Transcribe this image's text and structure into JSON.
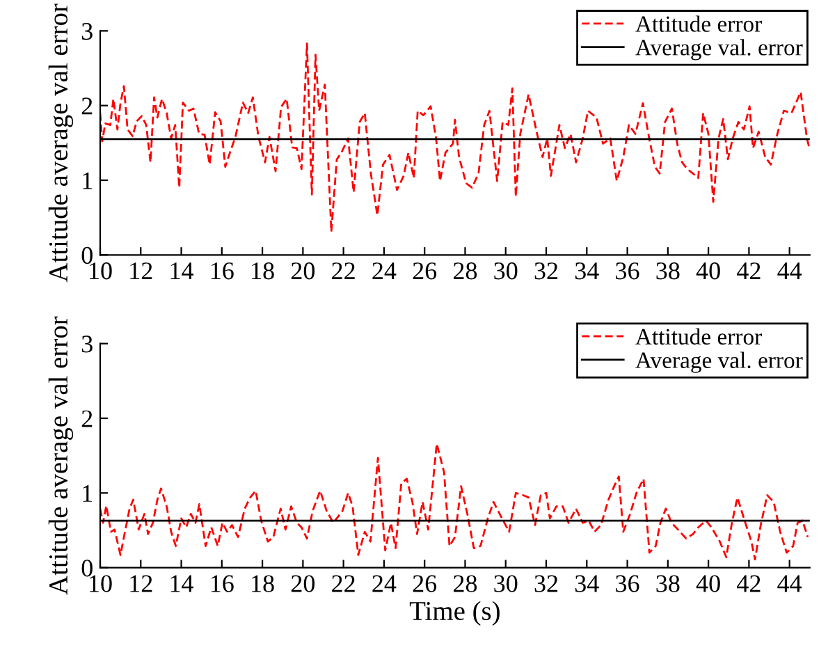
{
  "chart_data": [
    {
      "type": "line",
      "ylabel": "Attitude average val error",
      "xlim": [
        10,
        45
      ],
      "ylim": [
        0,
        3
      ],
      "xticks": [
        10,
        12,
        14,
        16,
        18,
        20,
        22,
        24,
        26,
        28,
        30,
        32,
        34,
        36,
        38,
        40,
        42,
        44
      ],
      "yticks": [
        0,
        1,
        2,
        3
      ],
      "legend": "top right",
      "grid": false,
      "series": [
        {
          "name": "Attitude error",
          "color": "#ff0000",
          "line_style": "dashed",
          "x": [
            10.0,
            10.1,
            10.25,
            10.5,
            10.65,
            10.85,
            11.0,
            11.17,
            11.35,
            11.6,
            11.8,
            12.05,
            12.27,
            12.48,
            12.66,
            12.82,
            13.05,
            13.28,
            13.5,
            13.7,
            13.9,
            14.08,
            14.38,
            14.6,
            14.88,
            15.15,
            15.4,
            15.67,
            15.94,
            16.17,
            16.4,
            16.67,
            17.04,
            17.3,
            17.53,
            17.8,
            18.13,
            18.35,
            18.65,
            18.92,
            19.2,
            19.47,
            19.7,
            19.93,
            20.2,
            20.44,
            20.62,
            20.8,
            21.08,
            21.4,
            21.67,
            21.9,
            22.23,
            22.5,
            22.8,
            23.05,
            23.35,
            23.67,
            23.95,
            24.27,
            24.64,
            24.97,
            25.2,
            25.47,
            25.66,
            25.94,
            26.3,
            26.57,
            26.76,
            27.03,
            27.4,
            27.5,
            27.7,
            28.05,
            28.34,
            28.66,
            28.94,
            29.2,
            29.58,
            29.85,
            30.13,
            30.33,
            30.5,
            30.72,
            31.13,
            31.55,
            31.82,
            32.05,
            32.23,
            32.65,
            32.92,
            33.2,
            33.47,
            33.8,
            34.06,
            34.48,
            34.8,
            35.16,
            35.48,
            35.8,
            36.08,
            36.4,
            36.77,
            37.08,
            37.36,
            37.6,
            37.86,
            38.2,
            38.46,
            38.7,
            38.96,
            39.24,
            39.5,
            39.74,
            40.0,
            40.24,
            40.5,
            40.73,
            40.96,
            41.2,
            41.48,
            41.75,
            42.03,
            42.2,
            42.48,
            42.8,
            43.08,
            43.4,
            43.72,
            44.1,
            44.55,
            44.86,
            44.98
          ],
          "values": [
            1.9,
            1.52,
            1.76,
            1.74,
            2.09,
            1.68,
            2.03,
            2.26,
            1.68,
            1.59,
            1.79,
            1.86,
            1.74,
            1.24,
            2.11,
            1.84,
            2.09,
            1.9,
            1.56,
            1.74,
            0.9,
            2.04,
            1.93,
            1.96,
            1.62,
            1.61,
            1.21,
            1.91,
            1.79,
            1.18,
            1.37,
            1.58,
            2.04,
            1.9,
            2.11,
            1.59,
            1.24,
            1.58,
            1.12,
            1.98,
            2.09,
            1.44,
            1.43,
            1.15,
            2.83,
            0.81,
            2.68,
            1.93,
            2.28,
            0.31,
            1.28,
            1.37,
            1.56,
            0.84,
            1.78,
            1.9,
            1.09,
            0.53,
            1.21,
            1.34,
            0.87,
            1.06,
            1.37,
            1.03,
            1.93,
            1.87,
            1.99,
            1.56,
            0.99,
            1.37,
            1.49,
            1.81,
            1.31,
            0.96,
            0.9,
            1.09,
            1.74,
            1.93,
            0.99,
            1.78,
            1.74,
            2.23,
            0.78,
            1.62,
            2.15,
            1.62,
            1.31,
            1.56,
            1.06,
            1.74,
            1.43,
            1.62,
            1.24,
            1.56,
            1.93,
            1.84,
            1.49,
            1.56,
            0.99,
            1.31,
            1.74,
            1.62,
            2.03,
            1.56,
            1.18,
            1.09,
            1.78,
            1.96,
            1.49,
            1.24,
            1.15,
            1.09,
            1.03,
            1.9,
            1.62,
            0.71,
            1.56,
            1.82,
            1.28,
            1.56,
            1.78,
            1.68,
            1.99,
            1.43,
            1.65,
            1.31,
            1.21,
            1.62,
            1.93,
            1.9,
            2.18,
            1.56,
            1.43
          ]
        },
        {
          "name": "Average val. error",
          "color": "#000000",
          "line_style": "solid",
          "x": [
            10,
            45
          ],
          "values": [
            1.55,
            1.55
          ]
        }
      ]
    },
    {
      "type": "line",
      "ylabel": "Attitude average val error",
      "xlabel": "Time (s)",
      "xlim": [
        10,
        45
      ],
      "ylim": [
        0,
        3
      ],
      "xticks": [
        10,
        12,
        14,
        16,
        18,
        20,
        22,
        24,
        26,
        28,
        30,
        32,
        34,
        36,
        38,
        40,
        42,
        44
      ],
      "yticks": [
        0,
        1,
        2,
        3
      ],
      "legend": "top right",
      "grid": false,
      "series": [
        {
          "name": "Attitude error",
          "color": "#ff0000",
          "line_style": "dashed",
          "x": [
            10.0,
            10.14,
            10.3,
            10.53,
            10.71,
            11.0,
            11.2,
            11.45,
            11.63,
            11.9,
            12.18,
            12.36,
            12.6,
            12.82,
            13.0,
            13.28,
            13.5,
            13.73,
            14.0,
            14.24,
            14.47,
            14.7,
            14.89,
            15.2,
            15.48,
            15.8,
            16.03,
            16.26,
            16.5,
            16.8,
            17.13,
            17.4,
            17.67,
            17.94,
            18.27,
            18.54,
            18.9,
            19.14,
            19.42,
            19.7,
            19.93,
            20.2,
            20.48,
            20.85,
            21.17,
            21.5,
            21.95,
            22.23,
            22.45,
            22.73,
            23.05,
            23.33,
            23.7,
            24.06,
            24.34,
            24.57,
            24.85,
            25.12,
            25.4,
            25.63,
            25.9,
            26.18,
            26.6,
            26.96,
            27.23,
            27.5,
            27.8,
            28.11,
            28.43,
            28.76,
            29.12,
            29.4,
            29.76,
            30.17,
            30.5,
            30.86,
            31.13,
            31.45,
            31.73,
            32.0,
            32.18,
            32.5,
            32.82,
            33.1,
            33.47,
            33.8,
            34.1,
            34.38,
            34.7,
            35.07,
            35.35,
            35.58,
            35.8,
            36.14,
            36.45,
            36.8,
            37.09,
            37.4,
            37.63,
            37.9,
            38.18,
            38.5,
            38.9,
            39.24,
            39.5,
            39.88,
            40.15,
            40.56,
            40.88,
            41.16,
            41.43,
            41.75,
            42.12,
            42.3,
            42.58,
            42.9,
            43.22,
            43.54,
            43.86,
            44.18,
            44.4,
            44.64,
            44.9
          ],
          "values": [
            0.79,
            0.6,
            0.83,
            0.48,
            0.51,
            0.17,
            0.45,
            0.79,
            0.91,
            0.51,
            0.72,
            0.45,
            0.6,
            0.91,
            1.06,
            0.82,
            0.48,
            0.29,
            0.66,
            0.54,
            0.72,
            0.6,
            0.85,
            0.29,
            0.54,
            0.29,
            0.6,
            0.48,
            0.57,
            0.41,
            0.79,
            0.94,
            1.03,
            0.63,
            0.35,
            0.41,
            0.79,
            0.51,
            0.82,
            0.6,
            0.54,
            0.39,
            0.76,
            1.03,
            0.76,
            0.6,
            0.76,
            1.0,
            0.82,
            0.17,
            0.48,
            0.35,
            1.47,
            0.23,
            0.6,
            0.26,
            1.13,
            1.19,
            0.88,
            0.45,
            0.88,
            0.51,
            1.66,
            1.28,
            0.29,
            0.41,
            1.09,
            0.72,
            0.26,
            0.29,
            0.66,
            0.88,
            0.69,
            0.48,
            1.0,
            0.97,
            0.94,
            0.57,
            0.97,
            1.0,
            0.66,
            0.82,
            0.82,
            0.6,
            0.79,
            0.6,
            0.63,
            0.48,
            0.57,
            0.91,
            1.09,
            1.22,
            0.48,
            0.72,
            1.0,
            1.19,
            0.2,
            0.29,
            0.6,
            0.79,
            0.6,
            0.51,
            0.39,
            0.45,
            0.54,
            0.63,
            0.54,
            0.35,
            0.14,
            0.6,
            0.94,
            0.66,
            0.35,
            0.11,
            0.57,
            0.97,
            0.88,
            0.48,
            0.2,
            0.29,
            0.6,
            0.63,
            0.41
          ]
        },
        {
          "name": "Average val. error",
          "color": "#000000",
          "line_style": "solid",
          "x": [
            10,
            45
          ],
          "values": [
            0.63,
            0.63
          ]
        }
      ]
    }
  ]
}
